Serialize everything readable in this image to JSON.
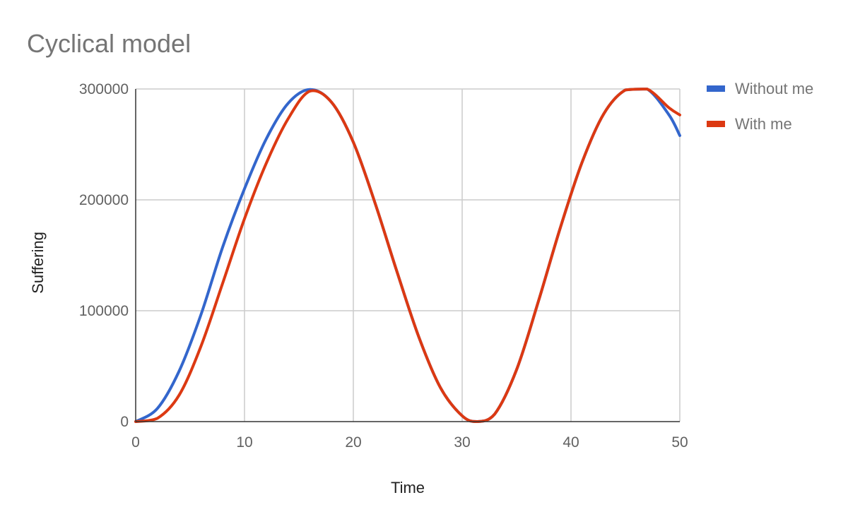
{
  "chart_data": {
    "type": "line",
    "title": "Cyclical model",
    "xlabel": "Time",
    "ylabel": "Suffering",
    "xlim": [
      0,
      50
    ],
    "ylim": [
      0,
      300000
    ],
    "x_ticks": [
      "0",
      "10",
      "20",
      "30",
      "40",
      "50"
    ],
    "y_ticks": [
      "0",
      "100000",
      "200000",
      "300000"
    ],
    "grid": true,
    "legend_position": "right",
    "x": [
      0,
      2,
      4,
      6,
      8,
      10,
      12,
      14,
      16,
      18,
      20,
      22,
      24,
      26,
      28,
      30,
      31.4,
      33,
      35,
      37,
      39,
      41,
      43,
      45,
      47,
      49,
      50
    ],
    "series": [
      {
        "name": "Without me",
        "color": "#3366cc",
        "values": [
          0,
          11900,
          45700,
          96500,
          157600,
          210000,
          255000,
          287000,
          299500,
          288000,
          252000,
          197000,
          135500,
          76800,
          30700,
          5200,
          0,
          6900,
          46800,
          108300,
          174200,
          233400,
          277400,
          299100,
          299900,
          276700,
          258000
        ]
      },
      {
        "name": "With me",
        "color": "#dc3912",
        "values": [
          0,
          3000,
          24000,
          68000,
          125000,
          183000,
          233000,
          273000,
          298000,
          288000,
          252000,
          197000,
          135500,
          76800,
          30700,
          5200,
          0,
          6900,
          46800,
          108300,
          174200,
          233400,
          277400,
          299100,
          299900,
          283100,
          276600
        ]
      }
    ]
  }
}
